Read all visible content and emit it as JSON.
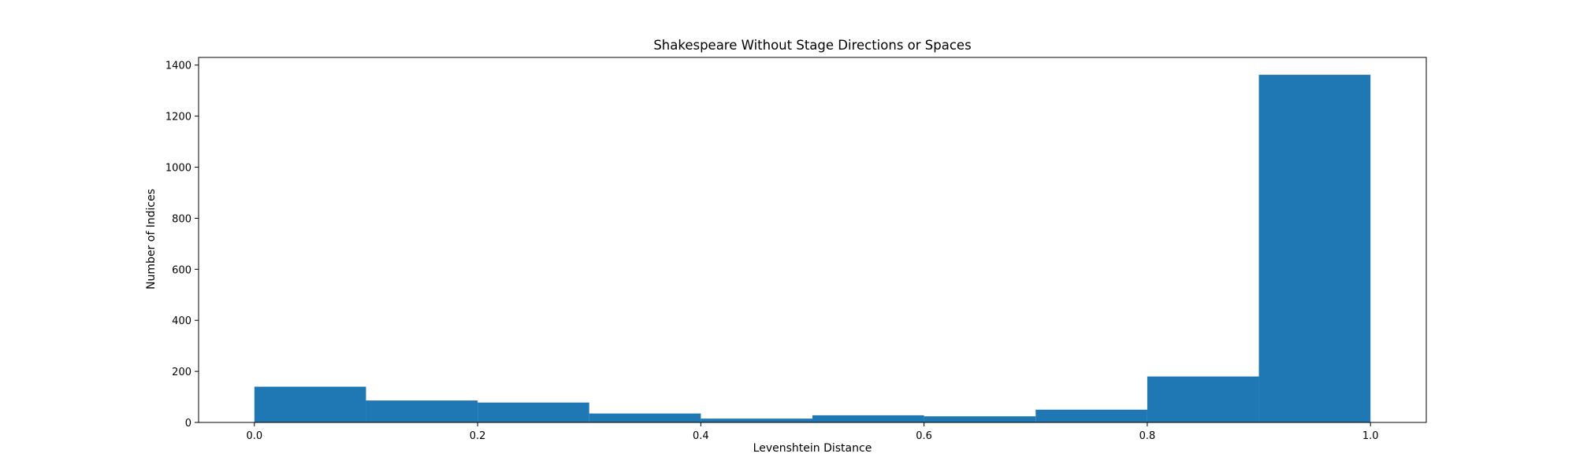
{
  "chart_data": {
    "type": "bar",
    "subtype": "histogram",
    "title": "Shakespeare Without Stage Directions or Spaces",
    "xlabel": "Levenshtein Distance",
    "ylabel": "Number of Indices",
    "bin_edges": [
      0.0,
      0.1,
      0.2,
      0.3,
      0.4,
      0.5,
      0.6,
      0.7,
      0.8,
      0.9,
      1.0
    ],
    "values": [
      140,
      86,
      78,
      35,
      15,
      28,
      24,
      50,
      180,
      1362
    ],
    "xlim": [
      -0.05,
      1.05
    ],
    "ylim": [
      0,
      1430
    ],
    "x_ticks": [
      0.0,
      0.2,
      0.4,
      0.6,
      0.8,
      1.0
    ],
    "x_tick_labels": [
      "0.0",
      "0.2",
      "0.4",
      "0.6",
      "0.8",
      "1.0"
    ],
    "y_ticks": [
      0,
      200,
      400,
      600,
      800,
      1000,
      1200,
      1400
    ],
    "y_tick_labels": [
      "0",
      "200",
      "400",
      "600",
      "800",
      "1000",
      "1200",
      "1400"
    ],
    "grid": false,
    "legend": "none",
    "colors": {
      "bar": "#1f77b4",
      "axes": "#000000",
      "background": "#ffffff"
    }
  }
}
